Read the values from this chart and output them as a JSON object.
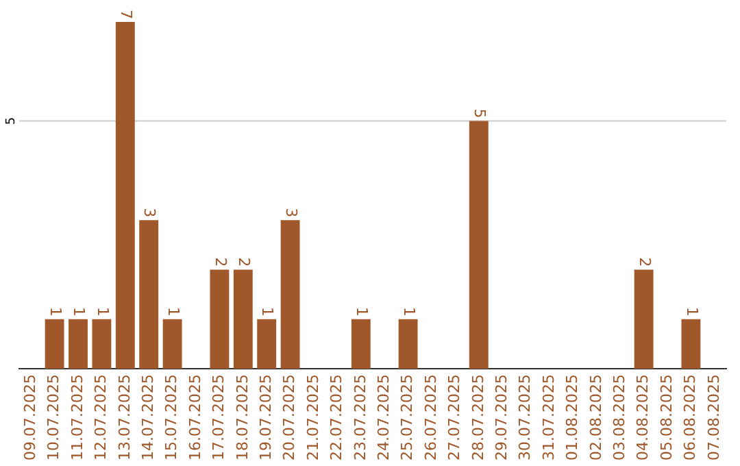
{
  "chart_data": {
    "type": "bar",
    "categories": [
      "09.07.2025",
      "10.07.2025",
      "11.07.2025",
      "12.07.2025",
      "13.07.2025",
      "14.07.2025",
      "15.07.2025",
      "16.07.2025",
      "17.07.2025",
      "18.07.2025",
      "19.07.2025",
      "20.07.2025",
      "21.07.2025",
      "22.07.2025",
      "23.07.2025",
      "24.07.2025",
      "25.07.2025",
      "26.07.2025",
      "27.07.2025",
      "28.07.2025",
      "29.07.2025",
      "30.07.2025",
      "31.07.2025",
      "01.08.2025",
      "02.08.2025",
      "03.08.2025",
      "04.08.2025",
      "05.08.2025",
      "06.08.2025",
      "07.08.2025"
    ],
    "values": [
      null,
      1,
      1,
      1,
      7,
      3,
      1,
      null,
      2,
      2,
      1,
      3,
      null,
      null,
      1,
      null,
      1,
      null,
      null,
      5,
      null,
      null,
      null,
      null,
      null,
      null,
      2,
      null,
      1,
      null
    ],
    "color": "#a0572a",
    "ref_lines": [
      {
        "axis": "y",
        "value": 5,
        "label": "5",
        "color": "#cccccc"
      }
    ],
    "data_labels": true,
    "legend": false
  }
}
